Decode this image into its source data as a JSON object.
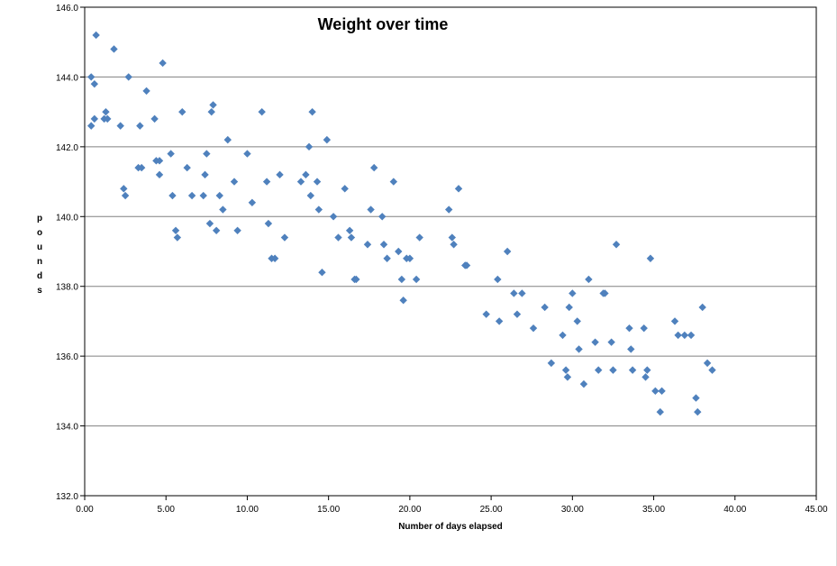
{
  "chart_data": {
    "type": "scatter",
    "title": "Weight over time",
    "xlabel": "Number of days elapsed",
    "ylabel": "pounds",
    "xlim": [
      0,
      45
    ],
    "ylim": [
      132,
      146
    ],
    "x_ticks": [
      "0.00",
      "5.00",
      "10.00",
      "15.00",
      "20.00",
      "25.00",
      "30.00",
      "35.00",
      "40.00",
      "45.00"
    ],
    "y_ticks": [
      "132.0",
      "134.0",
      "136.0",
      "138.0",
      "140.0",
      "142.0",
      "144.0",
      "146.0"
    ],
    "grid": "horizontal",
    "legend": "none",
    "marker_color": "#4f81bd",
    "series": [
      {
        "x": [
          0.4,
          0.4,
          0.6,
          0.6,
          0.7,
          1.2,
          1.3,
          1.4,
          1.8,
          2.2,
          2.4,
          2.5,
          2.7,
          3.3,
          3.4,
          3.5,
          3.8,
          4.3,
          4.4,
          4.6,
          4.6,
          4.8,
          5.3,
          5.4,
          5.6,
          5.7,
          6.0,
          6.3,
          6.6,
          7.3,
          7.4,
          7.5,
          7.7,
          7.8,
          7.9,
          8.1,
          8.3,
          8.5,
          8.8,
          9.2,
          9.4,
          10.0,
          10.3,
          10.9,
          11.2,
          11.3,
          11.5,
          11.7,
          12.0,
          12.3,
          13.3,
          13.6,
          13.8,
          13.9,
          14.0,
          14.3,
          14.4,
          14.6,
          14.9,
          15.3,
          15.6,
          16.0,
          16.3,
          16.4,
          16.6,
          16.7,
          17.4,
          17.6,
          17.8,
          18.3,
          18.4,
          18.6,
          19.0,
          19.3,
          19.5,
          19.6,
          19.8,
          20.0,
          20.4,
          20.6,
          22.4,
          22.6,
          22.7,
          23.0,
          23.4,
          23.5,
          24.7,
          25.4,
          25.5,
          26.0,
          26.4,
          26.6,
          26.9,
          27.6,
          28.3,
          28.7,
          29.4,
          29.6,
          29.7,
          29.8,
          30.0,
          30.3,
          30.4,
          30.7,
          31.0,
          31.4,
          31.6,
          31.9,
          32.0,
          32.4,
          32.5,
          32.7,
          33.5,
          33.6,
          33.7,
          34.4,
          34.5,
          34.6,
          34.8,
          35.1,
          35.4,
          35.5,
          36.3,
          36.5,
          36.9,
          37.3,
          37.6,
          37.7,
          38.0,
          38.3,
          38.6
        ],
        "y": [
          144.0,
          142.6,
          143.8,
          142.8,
          145.2,
          142.8,
          143.0,
          142.8,
          144.8,
          142.6,
          140.8,
          140.6,
          144.0,
          141.4,
          142.6,
          141.4,
          143.6,
          142.8,
          141.6,
          141.2,
          141.6,
          144.4,
          141.8,
          140.6,
          139.6,
          139.4,
          143.0,
          141.4,
          140.6,
          140.6,
          141.2,
          141.8,
          139.8,
          143.0,
          143.2,
          139.6,
          140.6,
          140.2,
          142.2,
          141.0,
          139.6,
          141.8,
          140.4,
          143.0,
          141.0,
          139.8,
          138.8,
          138.8,
          141.2,
          139.4,
          141.0,
          141.2,
          142.0,
          140.6,
          143.0,
          141.0,
          140.2,
          138.4,
          142.2,
          140.0,
          139.4,
          140.8,
          139.6,
          139.4,
          138.2,
          138.2,
          139.2,
          140.2,
          141.4,
          140.0,
          139.2,
          138.8,
          141.0,
          139.0,
          138.2,
          137.6,
          138.8,
          138.8,
          138.2,
          139.4,
          140.2,
          139.4,
          139.2,
          140.8,
          138.6,
          138.6,
          137.2,
          138.2,
          137.0,
          139.0,
          137.8,
          137.2,
          137.8,
          136.8,
          137.4,
          135.8,
          136.6,
          135.6,
          135.4,
          137.4,
          137.8,
          137.0,
          136.2,
          135.2,
          138.2,
          136.4,
          135.6,
          137.8,
          137.8,
          136.4,
          135.6,
          139.2,
          136.8,
          136.2,
          135.6,
          136.8,
          135.4,
          135.6,
          138.8,
          135.0,
          134.4,
          135.0,
          137.0,
          136.6,
          136.6,
          136.6,
          134.8,
          134.4,
          137.4,
          135.8,
          135.6
        ]
      }
    ]
  }
}
